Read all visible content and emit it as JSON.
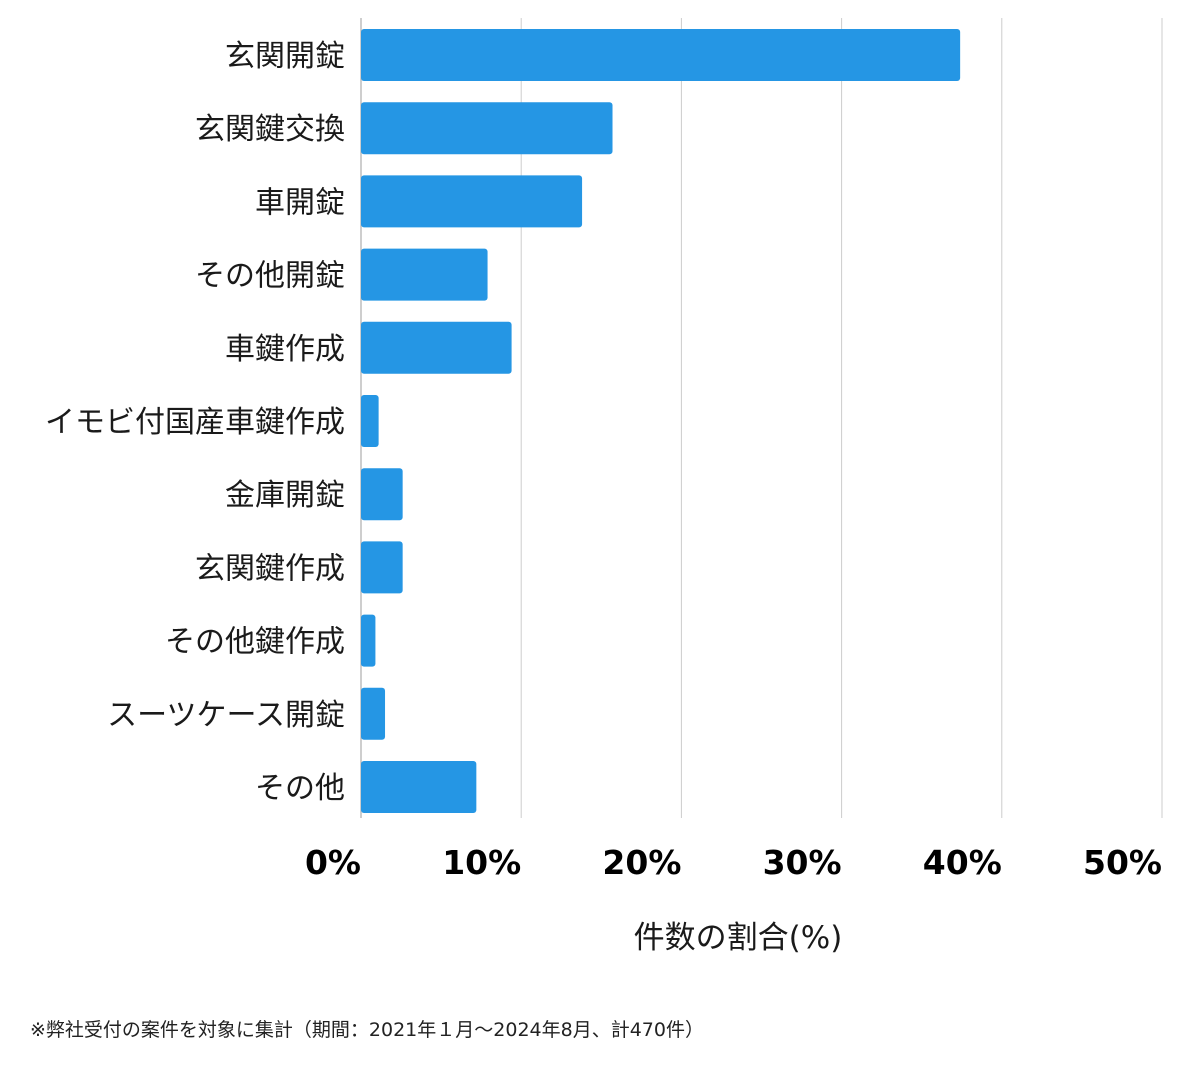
{
  "chart_data": {
    "type": "bar",
    "orientation": "horizontal",
    "categories": [
      "玄関開錠",
      "玄関鍵交換",
      "車開錠",
      "その他開錠",
      "車鍵作成",
      "イモビ付国産車鍵作成",
      "金庫開錠",
      "玄関鍵作成",
      "その他鍵作成",
      "スーツケース開錠",
      "その他"
    ],
    "values": [
      37.4,
      15.7,
      13.8,
      7.9,
      9.4,
      1.1,
      2.6,
      2.6,
      0.9,
      1.5,
      7.2
    ],
    "x_ticks": [
      "0%",
      "10%",
      "20%",
      "30%",
      "40%",
      "50%"
    ],
    "xlim": [
      0,
      50
    ],
    "xlabel": "件数の割合(%)",
    "ylabel": "",
    "title": "",
    "grid": true,
    "bar_color": "#2596e4",
    "grid_color": "#cccccc"
  },
  "footnote": "※弊社受付の案件を対象に集計（期間：2021年１月〜2024年8月、計470件）"
}
